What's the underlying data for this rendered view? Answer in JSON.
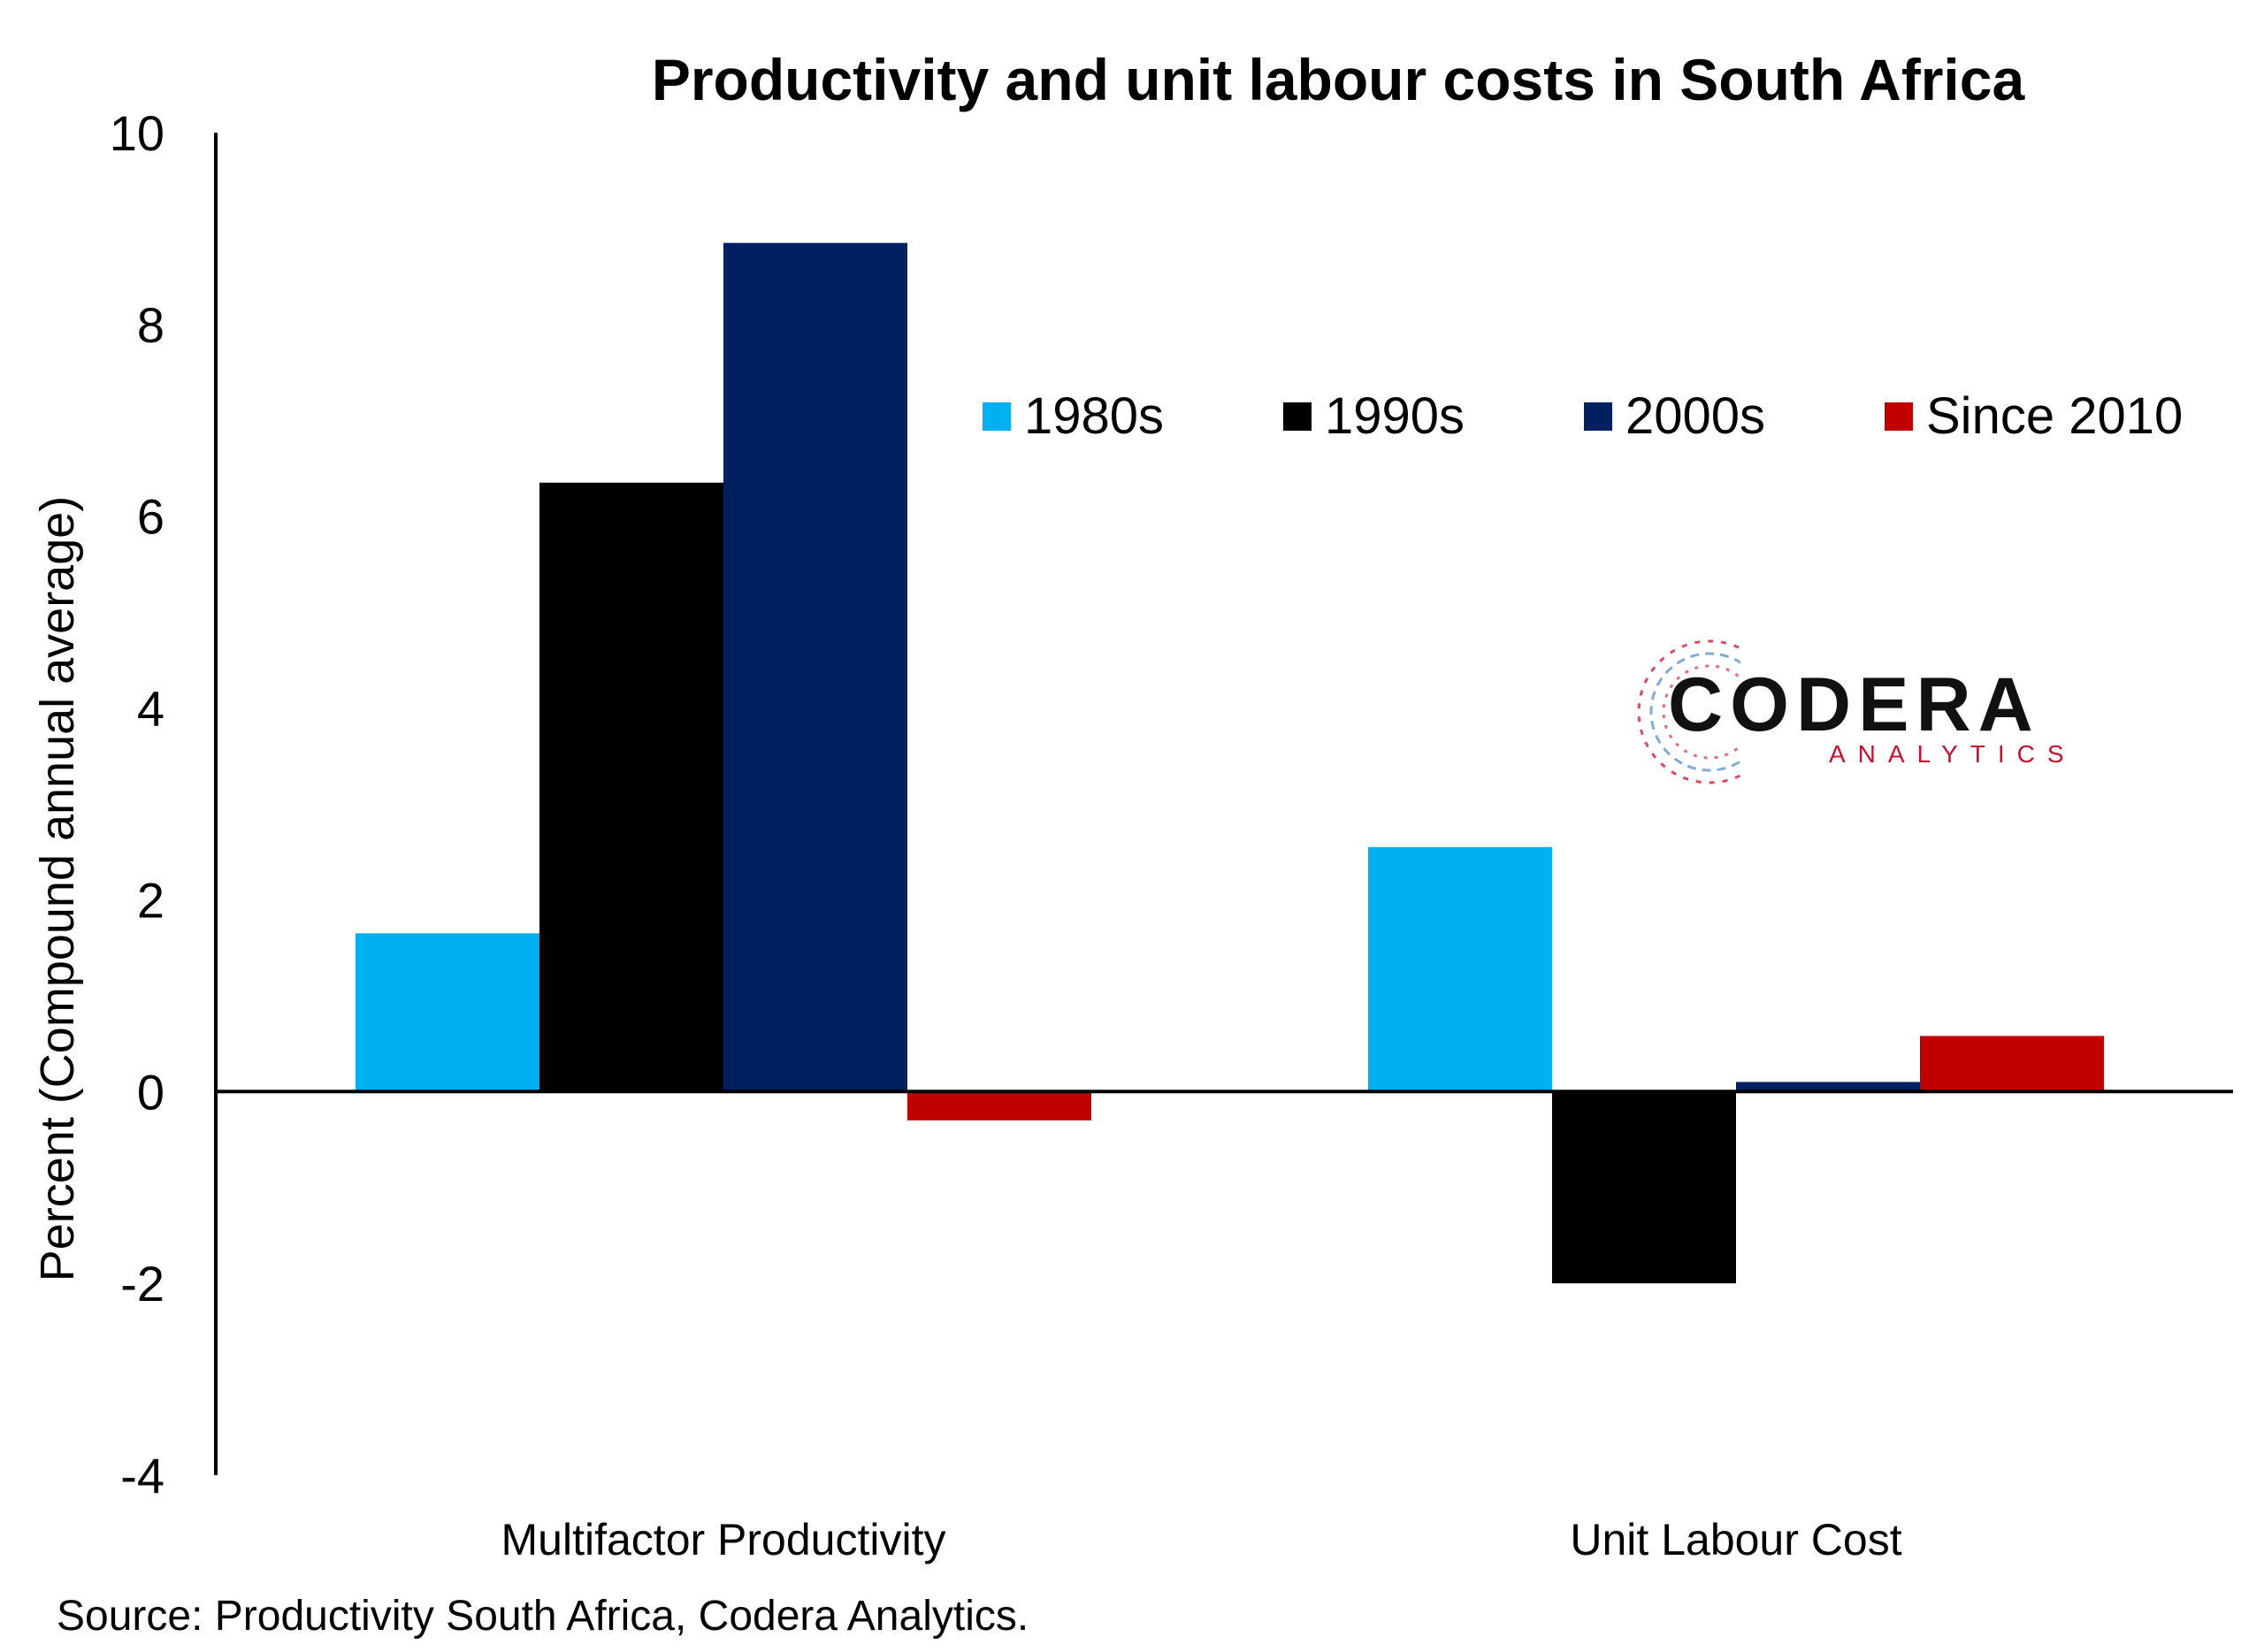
{
  "chart_data": {
    "type": "bar",
    "title": "Productivity and unit labour costs in South Africa",
    "ylabel": "Percent (Compound annual average)",
    "xlabel": "",
    "categories": [
      "Multifactor Productivity",
      "Unit Labour Cost"
    ],
    "series": [
      {
        "name": "1980s",
        "color": "#00b0f0",
        "values": [
          1.65,
          2.55
        ]
      },
      {
        "name": "1990s",
        "color": "#000000",
        "values": [
          6.35,
          -2.0
        ]
      },
      {
        "name": "2000s",
        "color": "#002060",
        "values": [
          8.85,
          0.1
        ]
      },
      {
        "name": "Since 2010",
        "color": "#c00000",
        "values": [
          -0.3,
          0.58
        ]
      }
    ],
    "ylim": [
      -4,
      10
    ],
    "yticks": [
      "-4",
      "-2",
      "0",
      "2",
      "4",
      "6",
      "8",
      "10"
    ],
    "grid": false,
    "legend_position": "top-right"
  },
  "source": "Source: Productivity South Africa, Codera Analytics.",
  "logo": {
    "name": "CODERA",
    "tagline": "ANALYTICS"
  }
}
